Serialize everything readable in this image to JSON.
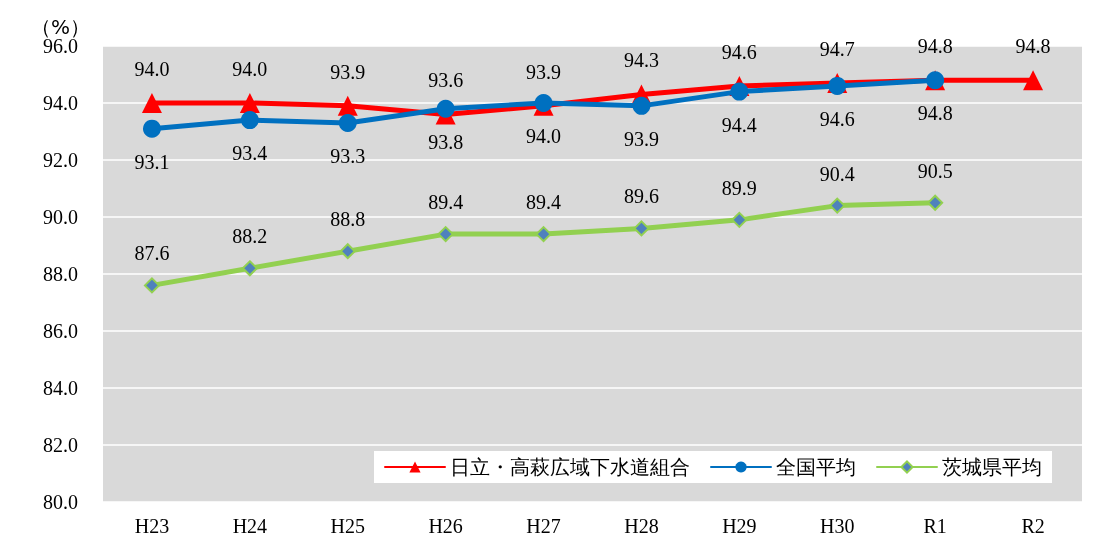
{
  "chart_data": {
    "type": "line",
    "ylabel": "（%）",
    "categories": [
      "H23",
      "H24",
      "H25",
      "H26",
      "H27",
      "H28",
      "H29",
      "H30",
      "R1",
      "R2"
    ],
    "series": [
      {
        "name": "日立・高萩広域下水道組合",
        "color": "#ff0000",
        "marker": "triangle",
        "values": [
          94.0,
          94.0,
          93.9,
          93.6,
          93.9,
          94.3,
          94.6,
          94.7,
          94.8,
          94.8
        ],
        "value_labels": [
          "94.0",
          "94.0",
          "93.9",
          "93.6",
          "93.9",
          "94.3",
          "94.6",
          "94.7",
          "94.8",
          "94.8"
        ]
      },
      {
        "name": "全国平均",
        "color": "#0070c0",
        "marker": "circle",
        "values": [
          93.1,
          93.4,
          93.3,
          93.8,
          94.0,
          93.9,
          94.4,
          94.6,
          94.8,
          null
        ],
        "value_labels": [
          "93.1",
          "93.4",
          "93.3",
          "93.8",
          "94.0",
          "93.9",
          "94.4",
          "94.6",
          "94.8",
          null
        ]
      },
      {
        "name": "茨城県平均",
        "color": "#92d050",
        "marker": "diamond",
        "values": [
          87.6,
          88.2,
          88.8,
          89.4,
          89.4,
          89.6,
          89.9,
          90.4,
          90.5,
          null
        ],
        "value_labels": [
          "87.6",
          "88.2",
          "88.8",
          "89.4",
          "89.4",
          "89.6",
          "89.9",
          "90.4",
          "90.5",
          null
        ]
      }
    ],
    "ylim": [
      80,
      96
    ],
    "yticks": [
      {
        "value": 80,
        "label": "80.0"
      },
      {
        "value": 82,
        "label": "82.0"
      },
      {
        "value": 84,
        "label": "84.0"
      },
      {
        "value": 86,
        "label": "86.0"
      },
      {
        "value": 88,
        "label": "88.0"
      },
      {
        "value": 90,
        "label": "90.0"
      },
      {
        "value": 92,
        "label": "92.0"
      },
      {
        "value": 94,
        "label": "94.0"
      },
      {
        "value": 96,
        "label": "96.0"
      }
    ],
    "grid": "y",
    "legend": "bottom right"
  }
}
